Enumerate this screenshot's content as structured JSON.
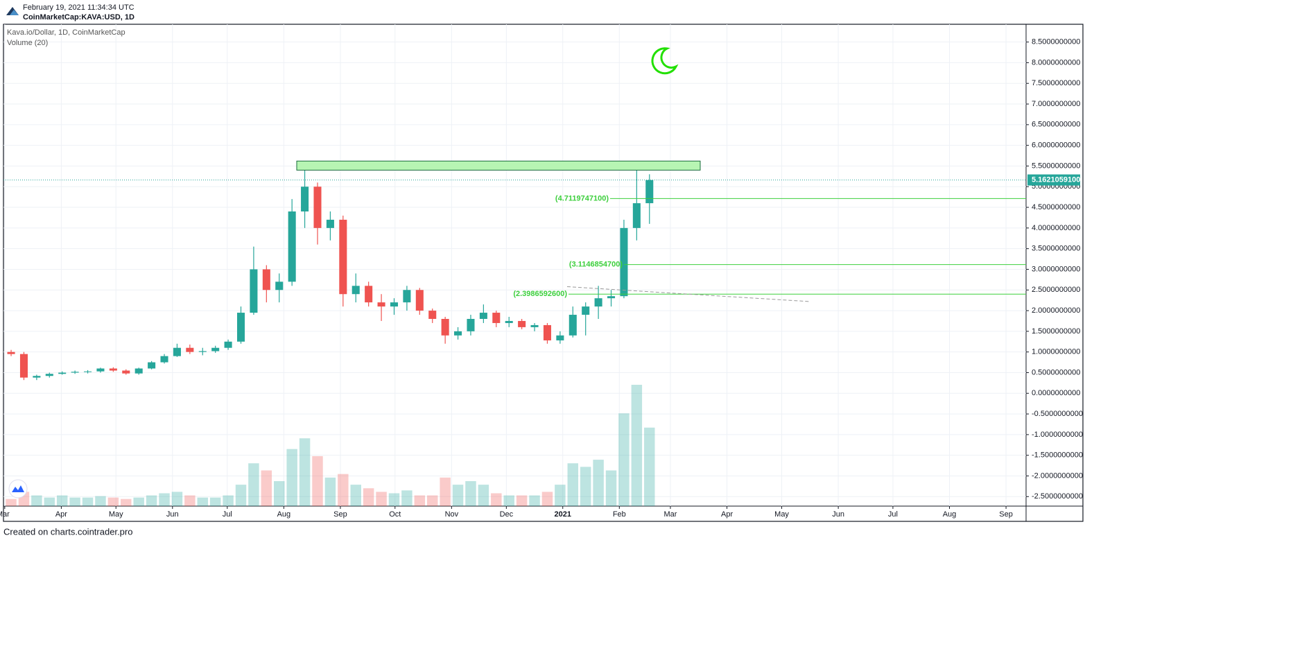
{
  "header": {
    "timestamp": "February 19, 2021 11:34:34 UTC",
    "symbol": "CoinMarketCap:KAVA:USD, 1D"
  },
  "footer": "Created on charts.cointrader.pro",
  "chart_data": {
    "type": "candlestick",
    "title": "Kava.io/Dollar, 1D, CoinMarketCap",
    "subtitle": "Volume (20)",
    "up_color": "#26a69a",
    "down_color": "#ef5350",
    "open": [
      1.0,
      0.95,
      0.38,
      0.42,
      0.47,
      0.5,
      0.52,
      0.53,
      0.6,
      0.55,
      0.48,
      0.6,
      0.75,
      0.9,
      1.1,
      1.0,
      1.02,
      1.1,
      1.25,
      1.95,
      3.0,
      2.5,
      2.7,
      4.4,
      5.0,
      4.0,
      4.2,
      2.4,
      2.6,
      2.2,
      2.1,
      2.2,
      2.5,
      2.0,
      1.8,
      1.4,
      1.5,
      1.8,
      1.95,
      1.7,
      1.75,
      1.6,
      1.65,
      1.28,
      1.4,
      1.9,
      2.1,
      2.3,
      2.35,
      4.0,
      4.6
    ],
    "high": [
      1.05,
      1.0,
      0.45,
      0.5,
      0.53,
      0.55,
      0.56,
      0.62,
      0.63,
      0.58,
      0.62,
      0.78,
      0.95,
      1.2,
      1.18,
      1.1,
      1.15,
      1.3,
      2.1,
      3.55,
      3.1,
      2.9,
      4.7,
      5.45,
      5.1,
      4.4,
      4.3,
      2.9,
      2.7,
      2.4,
      2.3,
      2.6,
      2.55,
      2.05,
      1.85,
      1.6,
      1.9,
      2.15,
      2.0,
      1.85,
      1.8,
      1.7,
      1.7,
      1.5,
      2.1,
      2.2,
      2.6,
      2.5,
      4.2,
      5.55,
      5.3
    ],
    "low": [
      0.9,
      0.32,
      0.32,
      0.38,
      0.45,
      0.47,
      0.48,
      0.5,
      0.52,
      0.45,
      0.45,
      0.58,
      0.72,
      0.88,
      0.95,
      0.92,
      0.98,
      1.05,
      1.2,
      1.9,
      2.2,
      2.2,
      2.6,
      4.0,
      3.6,
      3.7,
      2.1,
      2.2,
      2.1,
      1.75,
      1.9,
      2.0,
      1.9,
      1.7,
      1.2,
      1.3,
      1.4,
      1.7,
      1.6,
      1.6,
      1.55,
      1.5,
      1.2,
      1.2,
      1.35,
      1.4,
      1.8,
      2.1,
      2.3,
      3.7,
      4.1
    ],
    "close": [
      0.95,
      0.38,
      0.42,
      0.47,
      0.5,
      0.52,
      0.53,
      0.6,
      0.55,
      0.48,
      0.6,
      0.75,
      0.9,
      1.1,
      1.0,
      1.02,
      1.1,
      1.25,
      1.95,
      3.0,
      2.5,
      2.7,
      4.4,
      5.0,
      4.0,
      4.2,
      2.4,
      2.6,
      2.2,
      2.1,
      2.2,
      2.5,
      2.0,
      1.8,
      1.4,
      1.5,
      1.8,
      1.95,
      1.7,
      1.75,
      1.6,
      1.65,
      1.28,
      1.4,
      1.9,
      2.1,
      2.3,
      2.35,
      4.0,
      4.6,
      5.16
    ],
    "volume": [
      10,
      20,
      15,
      12,
      15,
      12,
      12,
      14,
      12,
      10,
      12,
      15,
      18,
      20,
      15,
      12,
      12,
      15,
      30,
      60,
      50,
      35,
      80,
      95,
      70,
      40,
      45,
      30,
      25,
      20,
      18,
      22,
      15,
      15,
      40,
      30,
      35,
      30,
      18,
      15,
      15,
      15,
      20,
      30,
      60,
      55,
      65,
      50,
      130,
      170,
      110
    ],
    "xlim": [
      -0.6,
      79.5
    ],
    "xticks": [
      {
        "value": -0.5,
        "label": "Mar"
      },
      {
        "value": 3.93,
        "label": "Apr"
      },
      {
        "value": 8.21,
        "label": "May"
      },
      {
        "value": 12.64,
        "label": "Jun"
      },
      {
        "value": 16.93,
        "label": "Jul"
      },
      {
        "value": 21.36,
        "label": "Aug"
      },
      {
        "value": 25.79,
        "label": "Sep"
      },
      {
        "value": 30.07,
        "label": "Oct"
      },
      {
        "value": 34.5,
        "label": "Nov"
      },
      {
        "value": 38.79,
        "label": "Dec"
      },
      {
        "value": 43.21,
        "label": "2021"
      },
      {
        "value": 47.64,
        "label": "Feb"
      },
      {
        "value": 51.64,
        "label": "Mar"
      },
      {
        "value": 56.07,
        "label": "Apr"
      },
      {
        "value": 60.36,
        "label": "May"
      },
      {
        "value": 64.79,
        "label": "Jun"
      },
      {
        "value": 69.07,
        "label": "Jul"
      },
      {
        "value": 73.5,
        "label": "Aug"
      },
      {
        "value": 77.93,
        "label": "Sep"
      }
    ],
    "ylim": [
      -2.73,
      8.93
    ],
    "yticks": [
      {
        "value": 8.5,
        "label": "8.5000000000"
      },
      {
        "value": 8,
        "label": "8.0000000000"
      },
      {
        "value": 7.5,
        "label": "7.5000000000"
      },
      {
        "value": 7,
        "label": "7.0000000000"
      },
      {
        "value": 6.5,
        "label": "6.5000000000"
      },
      {
        "value": 6,
        "label": "6.0000000000"
      },
      {
        "value": 5.5,
        "label": "5.5000000000"
      },
      {
        "value": 5,
        "label": "5.0000000000"
      },
      {
        "value": 4.5,
        "label": "4.5000000000"
      },
      {
        "value": 4,
        "label": "4.0000000000"
      },
      {
        "value": 3.5,
        "label": "3.5000000000"
      },
      {
        "value": 3,
        "label": "3.0000000000"
      },
      {
        "value": 2.5,
        "label": "2.5000000000"
      },
      {
        "value": 2,
        "label": "2.0000000000"
      },
      {
        "value": 1.5,
        "label": "1.5000000000"
      },
      {
        "value": 1,
        "label": "1.0000000000"
      },
      {
        "value": 0.5,
        "label": "0.5000000000"
      },
      {
        "value": 0,
        "label": "0.0000000000"
      },
      {
        "value": -0.5,
        "label": "-0.5000000000"
      },
      {
        "value": -1,
        "label": "-1.0000000000"
      },
      {
        "value": -1.5,
        "label": "-1.5000000000"
      },
      {
        "value": -2,
        "label": "-2.0000000000"
      },
      {
        "value": -2.5,
        "label": "-2.5000000000"
      }
    ],
    "grid": true,
    "last_price": {
      "value": 5.16210591,
      "label": "5.1621059100"
    },
    "zone": {
      "low": 5.4,
      "high": 5.62,
      "color": "#b7f5b3"
    },
    "levels": [
      {
        "value": 4.71197471,
        "label": "(4.7119747100)"
      },
      {
        "value": 3.11468547,
        "label": "(3.1146854700)"
      },
      {
        "value": 2.39865926,
        "label": "(2.3986592600)"
      }
    ],
    "trendline": [
      2.58,
      2.22
    ]
  }
}
